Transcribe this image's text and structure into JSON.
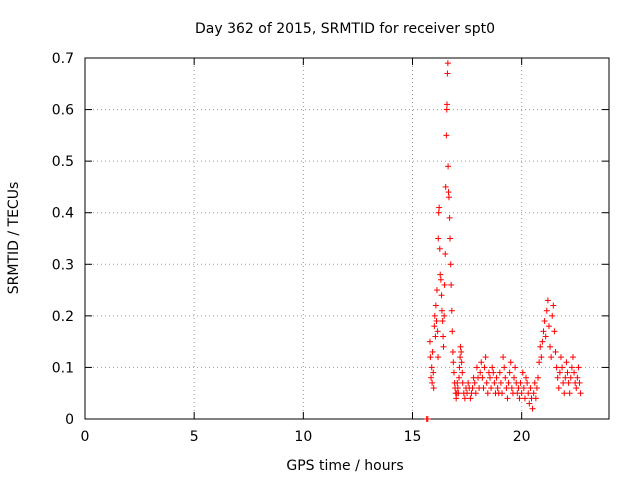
{
  "chart_data": {
    "type": "scatter",
    "title": "Day 362 of 2015, SRMTID for receiver spt0",
    "xlabel": "GPS time / hours",
    "ylabel": "SRMTID / TECUs",
    "xlim": [
      0,
      24
    ],
    "ylim": [
      0,
      0.7
    ],
    "xticks": [
      0,
      5,
      10,
      15,
      20
    ],
    "yticks": [
      0,
      0.1,
      0.2,
      0.3,
      0.4,
      0.5,
      0.6,
      0.7
    ],
    "xtick_labels": [
      "0",
      "5",
      "10",
      "15",
      "20"
    ],
    "ytick_labels": [
      "0",
      "0.1",
      "0.2",
      "0.3",
      "0.4",
      "0.5",
      "0.6",
      "0.7"
    ],
    "grid": true,
    "marker": "+",
    "color": "#ff0000",
    "series": [
      {
        "name": "SRMTID",
        "points": [
          [
            15.65,
            0.0
          ],
          [
            15.7,
            0.0
          ],
          [
            15.8,
            0.15
          ],
          [
            15.82,
            0.12
          ],
          [
            15.85,
            0.08
          ],
          [
            15.88,
            0.1
          ],
          [
            15.9,
            0.07
          ],
          [
            15.92,
            0.13
          ],
          [
            15.95,
            0.09
          ],
          [
            15.97,
            0.06
          ],
          [
            16.0,
            0.18
          ],
          [
            16.02,
            0.2
          ],
          [
            16.05,
            0.16
          ],
          [
            16.07,
            0.22
          ],
          [
            16.1,
            0.19
          ],
          [
            16.12,
            0.25
          ],
          [
            16.15,
            0.17
          ],
          [
            16.17,
            0.12
          ],
          [
            16.18,
            0.35
          ],
          [
            16.2,
            0.4
          ],
          [
            16.22,
            0.41
          ],
          [
            16.25,
            0.33
          ],
          [
            16.27,
            0.28
          ],
          [
            16.3,
            0.27
          ],
          [
            16.33,
            0.24
          ],
          [
            16.35,
            0.21
          ],
          [
            16.38,
            0.19
          ],
          [
            16.4,
            0.16
          ],
          [
            16.42,
            0.14
          ],
          [
            16.45,
            0.2
          ],
          [
            16.47,
            0.26
          ],
          [
            16.5,
            0.32
          ],
          [
            16.52,
            0.45
          ],
          [
            16.55,
            0.55
          ],
          [
            16.57,
            0.6
          ],
          [
            16.58,
            0.61
          ],
          [
            16.6,
            0.67
          ],
          [
            16.62,
            0.69
          ],
          [
            16.63,
            0.49
          ],
          [
            16.65,
            0.44
          ],
          [
            16.67,
            0.43
          ],
          [
            16.7,
            0.39
          ],
          [
            16.72,
            0.35
          ],
          [
            16.75,
            0.3
          ],
          [
            16.77,
            0.26
          ],
          [
            16.8,
            0.21
          ],
          [
            16.82,
            0.17
          ],
          [
            16.85,
            0.13
          ],
          [
            16.87,
            0.11
          ],
          [
            16.9,
            0.09
          ],
          [
            16.93,
            0.07
          ],
          [
            16.95,
            0.06
          ],
          [
            16.98,
            0.05
          ],
          [
            17.0,
            0.04
          ],
          [
            17.03,
            0.05
          ],
          [
            17.05,
            0.07
          ],
          [
            17.08,
            0.06
          ],
          [
            17.1,
            0.05
          ],
          [
            17.13,
            0.08
          ],
          [
            17.15,
            0.1
          ],
          [
            17.18,
            0.12
          ],
          [
            17.2,
            0.14
          ],
          [
            17.23,
            0.13
          ],
          [
            17.25,
            0.11
          ],
          [
            17.28,
            0.09
          ],
          [
            17.3,
            0.07
          ],
          [
            17.35,
            0.05
          ],
          [
            17.4,
            0.04
          ],
          [
            17.45,
            0.06
          ],
          [
            17.5,
            0.05
          ],
          [
            17.55,
            0.07
          ],
          [
            17.6,
            0.06
          ],
          [
            17.65,
            0.04
          ],
          [
            17.7,
            0.05
          ],
          [
            17.75,
            0.06
          ],
          [
            17.8,
            0.08
          ],
          [
            17.85,
            0.07
          ],
          [
            17.9,
            0.05
          ],
          [
            17.95,
            0.1
          ],
          [
            18.0,
            0.08
          ],
          [
            18.05,
            0.06
          ],
          [
            18.1,
            0.09
          ],
          [
            18.15,
            0.11
          ],
          [
            18.2,
            0.08
          ],
          [
            18.25,
            0.06
          ],
          [
            18.3,
            0.1
          ],
          [
            18.35,
            0.12
          ],
          [
            18.4,
            0.07
          ],
          [
            18.45,
            0.05
          ],
          [
            18.5,
            0.09
          ],
          [
            18.55,
            0.08
          ],
          [
            18.6,
            0.06
          ],
          [
            18.65,
            0.1
          ],
          [
            18.7,
            0.09
          ],
          [
            18.75,
            0.07
          ],
          [
            18.8,
            0.05
          ],
          [
            18.85,
            0.08
          ],
          [
            18.9,
            0.06
          ],
          [
            18.95,
            0.05
          ],
          [
            19.0,
            0.09
          ],
          [
            19.05,
            0.07
          ],
          [
            19.1,
            0.05
          ],
          [
            19.15,
            0.12
          ],
          [
            19.2,
            0.1
          ],
          [
            19.25,
            0.08
          ],
          [
            19.3,
            0.06
          ],
          [
            19.35,
            0.04
          ],
          [
            19.4,
            0.07
          ],
          [
            19.45,
            0.09
          ],
          [
            19.5,
            0.11
          ],
          [
            19.55,
            0.06
          ],
          [
            19.6,
            0.05
          ],
          [
            19.65,
            0.08
          ],
          [
            19.7,
            0.1
          ],
          [
            19.75,
            0.07
          ],
          [
            19.8,
            0.05
          ],
          [
            19.85,
            0.06
          ],
          [
            19.9,
            0.04
          ],
          [
            19.95,
            0.07
          ],
          [
            20.0,
            0.05
          ],
          [
            20.05,
            0.09
          ],
          [
            20.1,
            0.06
          ],
          [
            20.15,
            0.04
          ],
          [
            20.2,
            0.08
          ],
          [
            20.25,
            0.07
          ],
          [
            20.3,
            0.05
          ],
          [
            20.35,
            0.03
          ],
          [
            20.4,
            0.06
          ],
          [
            20.45,
            0.04
          ],
          [
            20.5,
            0.02
          ],
          [
            20.55,
            0.05
          ],
          [
            20.6,
            0.07
          ],
          [
            20.65,
            0.04
          ],
          [
            20.7,
            0.06
          ],
          [
            20.75,
            0.08
          ],
          [
            20.8,
            0.11
          ],
          [
            20.85,
            0.14
          ],
          [
            20.9,
            0.12
          ],
          [
            20.95,
            0.15
          ],
          [
            21.0,
            0.17
          ],
          [
            21.05,
            0.19
          ],
          [
            21.1,
            0.16
          ],
          [
            21.15,
            0.21
          ],
          [
            21.2,
            0.23
          ],
          [
            21.25,
            0.18
          ],
          [
            21.3,
            0.14
          ],
          [
            21.35,
            0.12
          ],
          [
            21.4,
            0.2
          ],
          [
            21.45,
            0.22
          ],
          [
            21.5,
            0.17
          ],
          [
            21.55,
            0.13
          ],
          [
            21.6,
            0.1
          ],
          [
            21.65,
            0.08
          ],
          [
            21.7,
            0.06
          ],
          [
            21.75,
            0.09
          ],
          [
            21.8,
            0.12
          ],
          [
            21.85,
            0.1
          ],
          [
            21.9,
            0.07
          ],
          [
            21.95,
            0.05
          ],
          [
            22.0,
            0.08
          ],
          [
            22.05,
            0.11
          ],
          [
            22.1,
            0.09
          ],
          [
            22.15,
            0.07
          ],
          [
            22.2,
            0.05
          ],
          [
            22.25,
            0.08
          ],
          [
            22.3,
            0.1
          ],
          [
            22.35,
            0.12
          ],
          [
            22.4,
            0.09
          ],
          [
            22.45,
            0.07
          ],
          [
            22.5,
            0.06
          ],
          [
            22.55,
            0.08
          ],
          [
            22.6,
            0.1
          ],
          [
            22.65,
            0.07
          ],
          [
            22.7,
            0.05
          ]
        ]
      }
    ]
  }
}
